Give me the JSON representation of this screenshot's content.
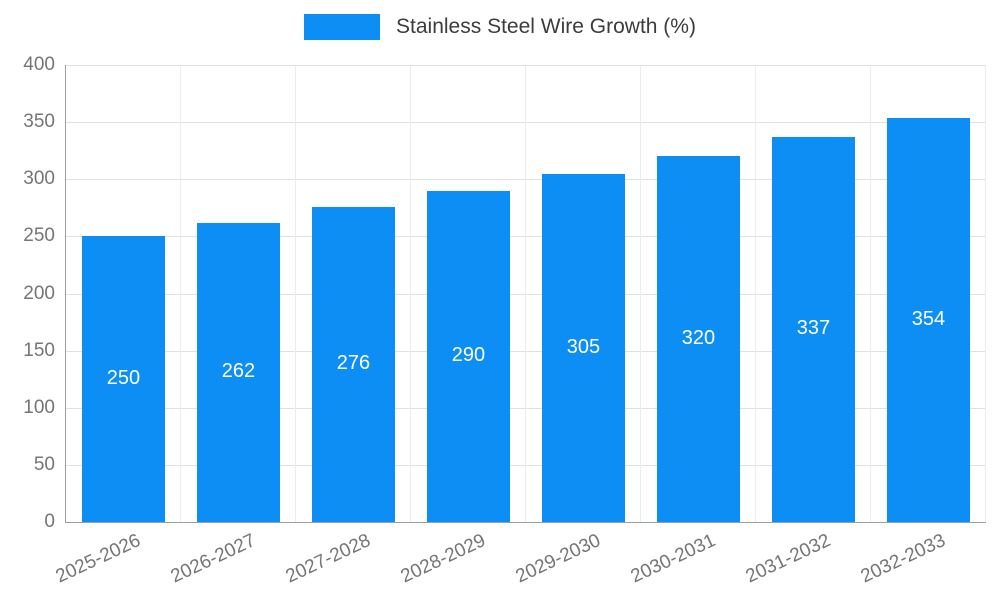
{
  "chart_data": {
    "type": "bar",
    "title": "Stainless Steel Wire Growth (%)",
    "categories": [
      "2025-2026",
      "2026-2027",
      "2027-2028",
      "2028-2029",
      "2029-2030",
      "2030-2031",
      "2031-2032",
      "2032-2033"
    ],
    "values": [
      250,
      262,
      276,
      290,
      305,
      320,
      337,
      354
    ],
    "xlabel": "",
    "ylabel": "",
    "ylim": [
      0,
      400
    ],
    "ytick_step": 50,
    "grid": true,
    "legend_position": "top-center",
    "bar_color": "#0d8ef4",
    "value_label_color": "#ffffff",
    "axis_text_color": "#757575"
  },
  "legend": {
    "label": "Stainless Steel Wire Growth (%)"
  }
}
